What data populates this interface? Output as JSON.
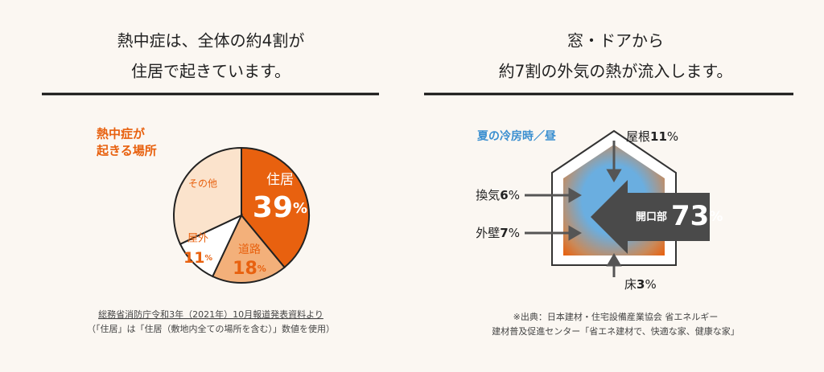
{
  "left": {
    "header": [
      "熱中症は、全体の約4割が",
      "住居で起きています。"
    ],
    "source": [
      "総務省消防庁令和3年（2021年）10月報道発表資料より",
      "（「住居」は「住居（敷地内全ての場所を含む）」数値を使用）"
    ]
  },
  "chart_data": {
    "type": "pie",
    "title": [
      "熱中症が",
      "起きる場所"
    ],
    "categories": [
      "住居",
      "道路",
      "屋外",
      "その他"
    ],
    "values": [
      39,
      18,
      11,
      32
    ],
    "unit": "%",
    "colors": [
      "#e8610f",
      "#f3b07a",
      "#ffffff",
      "#fbe3cc"
    ]
  },
  "right": {
    "header": [
      "窓・ドアから",
      "約7割の外気の熱が流入します。"
    ],
    "caption": "夏の冷房時／昼",
    "unit": "%",
    "items": [
      {
        "label": "屋根",
        "value": 11
      },
      {
        "label": "換気",
        "value": 6
      },
      {
        "label": "外壁",
        "value": 7
      },
      {
        "label": "床",
        "value": 3
      },
      {
        "label": "開口部",
        "value": 73
      }
    ],
    "source": [
      "※出典：日本建材・住宅設備産業協会 省エネルギー",
      "建材普及促進センター「省エネ建材で、快適な家、健康な家」"
    ]
  }
}
